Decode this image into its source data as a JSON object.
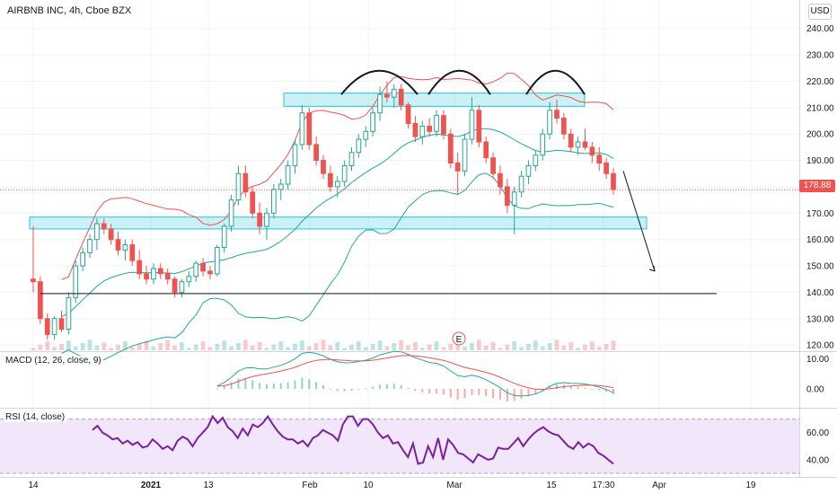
{
  "header": {
    "title": "AIRBNB INC, 4h, Cboe BZX",
    "currency": "USD"
  },
  "price_tag": "178.88",
  "chart_data": [
    {
      "type": "candlestick",
      "title": "AIRBNB INC, 4h, Cboe BZX",
      "ylim": [
        118,
        244
      ],
      "yticks": [
        120,
        130,
        140,
        150,
        160,
        170,
        180,
        190,
        200,
        210,
        220,
        230,
        240
      ],
      "ytick_labels": [
        "120.00",
        "130.00",
        "140.00",
        "150.00",
        "160.00",
        "170.00",
        "180.00",
        "190.00",
        "200.00",
        "210.00",
        "220.00",
        "230.00",
        "240.00"
      ],
      "xtick_labels": [
        "14",
        "2021",
        "13",
        "Feb",
        "10",
        "Mar",
        "15",
        "17:30",
        "Apr",
        "19"
      ],
      "last_price": 178.88,
      "candles": [
        {
          "o": 145,
          "h": 165,
          "l": 140,
          "c": 144
        },
        {
          "o": 144,
          "h": 146,
          "l": 128,
          "c": 130
        },
        {
          "o": 130,
          "h": 132,
          "l": 122,
          "c": 124
        },
        {
          "o": 124,
          "h": 131,
          "l": 122,
          "c": 130
        },
        {
          "o": 130,
          "h": 133,
          "l": 125,
          "c": 126
        },
        {
          "o": 126,
          "h": 140,
          "l": 124,
          "c": 138
        },
        {
          "o": 138,
          "h": 152,
          "l": 136,
          "c": 150
        },
        {
          "o": 150,
          "h": 157,
          "l": 148,
          "c": 155
        },
        {
          "o": 155,
          "h": 162,
          "l": 153,
          "c": 160
        },
        {
          "o": 160,
          "h": 168,
          "l": 156,
          "c": 166
        },
        {
          "o": 166,
          "h": 168,
          "l": 162,
          "c": 164
        },
        {
          "o": 164,
          "h": 166,
          "l": 158,
          "c": 160
        },
        {
          "o": 160,
          "h": 163,
          "l": 154,
          "c": 156
        },
        {
          "o": 156,
          "h": 160,
          "l": 152,
          "c": 158
        },
        {
          "o": 158,
          "h": 160,
          "l": 150,
          "c": 152
        },
        {
          "o": 152,
          "h": 156,
          "l": 145,
          "c": 147
        },
        {
          "o": 147,
          "h": 150,
          "l": 143,
          "c": 145
        },
        {
          "o": 145,
          "h": 151,
          "l": 143,
          "c": 149
        },
        {
          "o": 149,
          "h": 151,
          "l": 145,
          "c": 147
        },
        {
          "o": 147,
          "h": 149,
          "l": 143,
          "c": 145
        },
        {
          "o": 145,
          "h": 146,
          "l": 138,
          "c": 140
        },
        {
          "o": 140,
          "h": 145,
          "l": 138,
          "c": 144
        },
        {
          "o": 144,
          "h": 148,
          "l": 142,
          "c": 146
        },
        {
          "o": 146,
          "h": 152,
          "l": 144,
          "c": 151
        },
        {
          "o": 151,
          "h": 153,
          "l": 146,
          "c": 148
        },
        {
          "o": 148,
          "h": 150,
          "l": 145,
          "c": 147
        },
        {
          "o": 147,
          "h": 158,
          "l": 146,
          "c": 157
        },
        {
          "o": 157,
          "h": 166,
          "l": 155,
          "c": 165
        },
        {
          "o": 165,
          "h": 177,
          "l": 163,
          "c": 175
        },
        {
          "o": 175,
          "h": 188,
          "l": 173,
          "c": 185
        },
        {
          "o": 185,
          "h": 188,
          "l": 176,
          "c": 178
        },
        {
          "o": 178,
          "h": 180,
          "l": 168,
          "c": 170
        },
        {
          "o": 170,
          "h": 174,
          "l": 162,
          "c": 165
        },
        {
          "o": 165,
          "h": 172,
          "l": 160,
          "c": 170
        },
        {
          "o": 170,
          "h": 181,
          "l": 168,
          "c": 179
        },
        {
          "o": 179,
          "h": 183,
          "l": 175,
          "c": 181
        },
        {
          "o": 181,
          "h": 190,
          "l": 179,
          "c": 188
        },
        {
          "o": 188,
          "h": 198,
          "l": 185,
          "c": 196
        },
        {
          "o": 196,
          "h": 211,
          "l": 194,
          "c": 208
        },
        {
          "o": 208,
          "h": 210,
          "l": 194,
          "c": 196
        },
        {
          "o": 196,
          "h": 199,
          "l": 188,
          "c": 190
        },
        {
          "o": 190,
          "h": 192,
          "l": 183,
          "c": 185
        },
        {
          "o": 185,
          "h": 188,
          "l": 178,
          "c": 180
        },
        {
          "o": 180,
          "h": 184,
          "l": 176,
          "c": 182
        },
        {
          "o": 182,
          "h": 190,
          "l": 180,
          "c": 188
        },
        {
          "o": 188,
          "h": 195,
          "l": 186,
          "c": 193
        },
        {
          "o": 193,
          "h": 200,
          "l": 191,
          "c": 198
        },
        {
          "o": 198,
          "h": 203,
          "l": 195,
          "c": 201
        },
        {
          "o": 201,
          "h": 210,
          "l": 199,
          "c": 208
        },
        {
          "o": 208,
          "h": 218,
          "l": 205,
          "c": 215
        },
        {
          "o": 215,
          "h": 220,
          "l": 212,
          "c": 214
        },
        {
          "o": 214,
          "h": 219,
          "l": 210,
          "c": 217
        },
        {
          "o": 217,
          "h": 219,
          "l": 209,
          "c": 211
        },
        {
          "o": 211,
          "h": 212,
          "l": 202,
          "c": 204
        },
        {
          "o": 204,
          "h": 207,
          "l": 197,
          "c": 199
        },
        {
          "o": 199,
          "h": 205,
          "l": 196,
          "c": 203
        },
        {
          "o": 203,
          "h": 206,
          "l": 199,
          "c": 201
        },
        {
          "o": 201,
          "h": 209,
          "l": 199,
          "c": 207
        },
        {
          "o": 207,
          "h": 209,
          "l": 198,
          "c": 200
        },
        {
          "o": 200,
          "h": 202,
          "l": 187,
          "c": 189
        },
        {
          "o": 189,
          "h": 193,
          "l": 177,
          "c": 186
        },
        {
          "o": 186,
          "h": 200,
          "l": 184,
          "c": 198
        },
        {
          "o": 198,
          "h": 214,
          "l": 196,
          "c": 209
        },
        {
          "o": 209,
          "h": 211,
          "l": 195,
          "c": 197
        },
        {
          "o": 197,
          "h": 199,
          "l": 189,
          "c": 191
        },
        {
          "o": 191,
          "h": 193,
          "l": 183,
          "c": 185
        },
        {
          "o": 185,
          "h": 188,
          "l": 177,
          "c": 180
        },
        {
          "o": 180,
          "h": 183,
          "l": 170,
          "c": 173
        },
        {
          "o": 173,
          "h": 180,
          "l": 162,
          "c": 178
        },
        {
          "o": 178,
          "h": 186,
          "l": 176,
          "c": 184
        },
        {
          "o": 184,
          "h": 190,
          "l": 181,
          "c": 188
        },
        {
          "o": 188,
          "h": 194,
          "l": 186,
          "c": 192
        },
        {
          "o": 192,
          "h": 202,
          "l": 190,
          "c": 200
        },
        {
          "o": 200,
          "h": 212,
          "l": 198,
          "c": 209
        },
        {
          "o": 209,
          "h": 213,
          "l": 204,
          "c": 206
        },
        {
          "o": 206,
          "h": 208,
          "l": 198,
          "c": 200
        },
        {
          "o": 200,
          "h": 202,
          "l": 193,
          "c": 195
        },
        {
          "o": 195,
          "h": 199,
          "l": 192,
          "c": 197
        },
        {
          "o": 197,
          "h": 202,
          "l": 194,
          "c": 195
        },
        {
          "o": 195,
          "h": 197,
          "l": 189,
          "c": 192
        },
        {
          "o": 192,
          "h": 195,
          "l": 186,
          "c": 189
        },
        {
          "o": 189,
          "h": 191,
          "l": 183,
          "c": 185
        },
        {
          "o": 185,
          "h": 187,
          "l": 177,
          "c": 179
        }
      ]
    },
    {
      "type": "line",
      "title": "MACD (12, 26, close, 9)",
      "ylim": [
        -6,
        12
      ],
      "yticks": [
        0,
        10
      ],
      "ytick_labels": [
        "0.00",
        "10.00"
      ]
    },
    {
      "type": "line",
      "title": "RSI (14, close)",
      "ylim": [
        28,
        77
      ],
      "yticks": [
        40,
        60
      ],
      "ytick_labels": [
        "40.00",
        "60.00"
      ],
      "band": [
        30,
        70
      ],
      "series": [
        {
          "values": [
            62,
            65,
            60,
            58,
            55,
            56,
            52,
            54,
            51,
            53,
            49,
            50,
            55,
            52,
            48,
            50,
            47,
            54,
            57,
            55,
            50,
            56,
            60,
            64,
            72,
            67,
            71,
            64,
            61,
            56,
            63,
            58,
            66,
            64,
            67,
            72,
            66,
            61,
            57,
            55,
            55,
            52,
            54,
            50,
            56,
            58,
            62,
            60,
            58,
            54,
            66,
            72,
            72,
            65,
            70,
            70,
            66,
            60,
            56,
            58,
            52,
            53,
            47,
            42,
            52,
            37,
            38,
            50,
            42,
            56,
            40,
            55,
            51,
            45,
            44,
            41,
            38,
            44,
            42,
            40,
            41,
            49,
            48,
            48,
            52,
            56,
            50,
            55,
            59,
            62,
            64,
            61,
            59,
            58,
            54,
            50,
            48,
            53,
            49,
            52,
            50,
            45,
            43,
            40,
            37
          ]
        }
      ]
    }
  ]
}
